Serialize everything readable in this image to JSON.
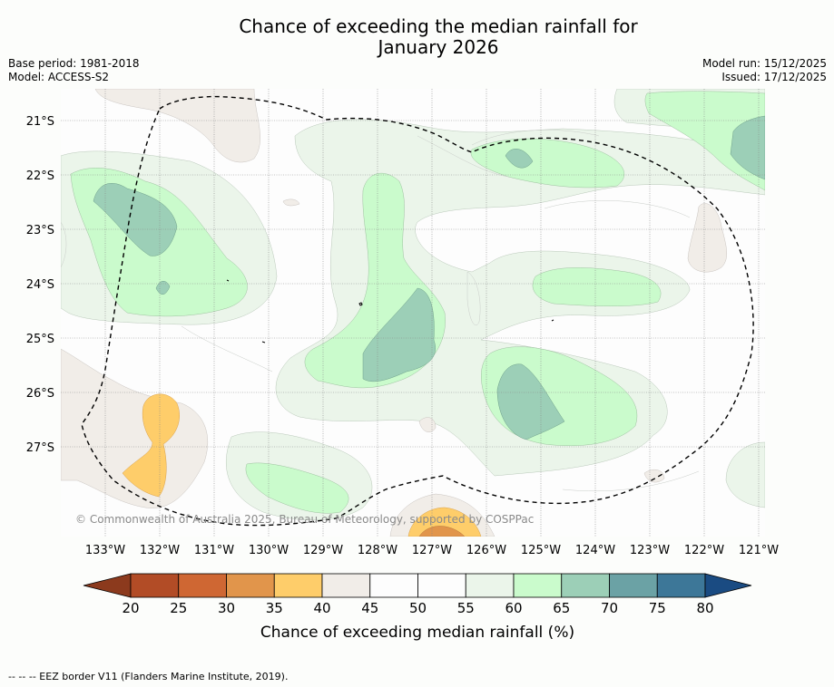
{
  "title_line1": "Chance of exceeding the median rainfall for",
  "title_line2": "January 2026",
  "base_period": "Base period: 1981-2018",
  "model": "Model: ACCESS-S2",
  "model_run": "Model run: 15/12/2025",
  "issued": "Issued: 17/12/2025",
  "copyright": "© Commonwealth of Australia 2025, Bureau of Meteorology, supported by COSPPac",
  "footnote": "-- -- -- EEZ border V11 (Flanders Marine Institute, 2019).",
  "lat_labels": [
    "21°S",
    "22°S",
    "23°S",
    "24°S",
    "25°S",
    "26°S",
    "27°S"
  ],
  "lon_labels": [
    "133°W",
    "132°W",
    "131°W",
    "130°W",
    "129°W",
    "128°W",
    "127°W",
    "126°W",
    "125°W",
    "124°W",
    "123°W",
    "122°W",
    "121°W"
  ],
  "colorbar": {
    "label": "Chance of exceeding median rainfall (%)",
    "ticks": [
      "20",
      "25",
      "30",
      "35",
      "40",
      "45",
      "50",
      "55",
      "60",
      "65",
      "70",
      "75",
      "80"
    ],
    "colors": [
      "#b24c26",
      "#cf6733",
      "#e1954b",
      "#fecd6a",
      "#f1ede8",
      "#fdfdfd",
      "#fdfdfd",
      "#ebf5ea",
      "#cafbcc",
      "#9ccfb7",
      "#6ba2a5",
      "#3d7798"
    ],
    "under_color": "#8c3a1d",
    "over_color": "#1a4b82"
  }
}
